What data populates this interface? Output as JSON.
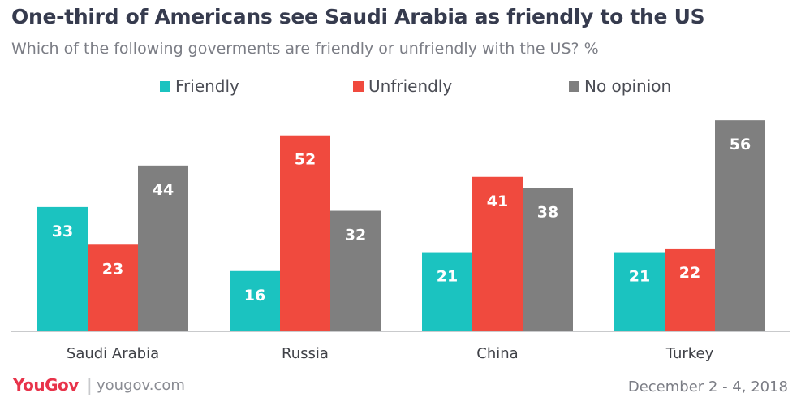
{
  "header": {
    "title": "One-third of Americans see Saudi Arabia as friendly to the US",
    "subtitle": "Which of the following goverments are friendly or unfriendly with the US? %"
  },
  "footer": {
    "brand": "YouGov",
    "separator": "|",
    "url": "yougov.com",
    "date": "December 2 - 4, 2018"
  },
  "chart_data": {
    "type": "bar",
    "title": "One-third of Americans see Saudi Arabia as friendly to the US",
    "subtitle": "Which of the following goverments are friendly or unfriendly with the US? %",
    "xlabel": "",
    "ylabel": "",
    "ylim": [
      0,
      60
    ],
    "grid": false,
    "legend_position": "top",
    "categories": [
      "Saudi Arabia",
      "Russia",
      "China",
      "Turkey"
    ],
    "series": [
      {
        "name": "Friendly",
        "color": "#1bc3c0",
        "values": [
          33,
          16,
          21,
          21
        ]
      },
      {
        "name": "Unfriendly",
        "color": "#f04a3e",
        "values": [
          23,
          52,
          41,
          22
        ]
      },
      {
        "name": "No opinion",
        "color": "#7f7f7f",
        "values": [
          44,
          32,
          38,
          56
        ]
      }
    ]
  }
}
